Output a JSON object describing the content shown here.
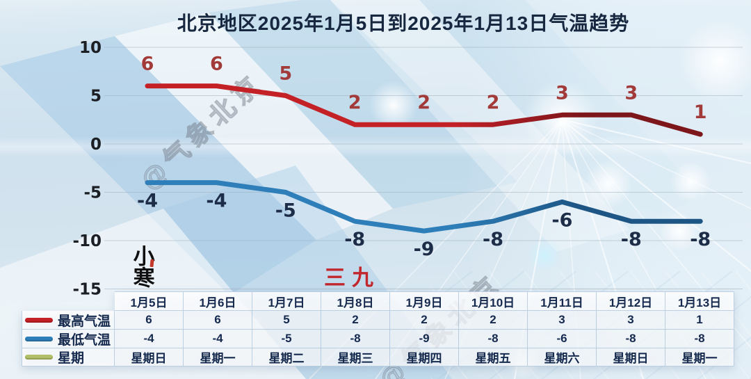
{
  "chart_data": {
    "type": "line",
    "title": "北京地区2025年1月5日到2025年1月13日气温趋势",
    "categories": [
      "1月5日",
      "1月6日",
      "1月7日",
      "1月8日",
      "1月9日",
      "1月10日",
      "1月11日",
      "1月12日",
      "1月13日"
    ],
    "series": [
      {
        "name": "最高气温",
        "values": [
          6,
          6,
          5,
          2,
          2,
          2,
          3,
          3,
          1
        ],
        "color": "#c42127",
        "color_dark": "#7d161b",
        "label_color": "#a23a3a",
        "label_side": "above"
      },
      {
        "name": "最低气温",
        "values": [
          -4,
          -4,
          -5,
          -8,
          -9,
          -8,
          -6,
          -8,
          -8
        ],
        "color": "#2e7fb9",
        "color_dark": "#1d5585",
        "label_color": "#1d2c47",
        "label_side": "below"
      }
    ],
    "y_ticks": [
      10,
      5,
      0,
      -5,
      -10,
      -15
    ],
    "ylim": [
      -15,
      10
    ],
    "grid": true,
    "legend_position": "table-left"
  },
  "table": {
    "weekday_row": {
      "label": "星期",
      "marker_color": "#b3bf66",
      "values": [
        "星期日",
        "星期一",
        "星期二",
        "星期三",
        "星期四",
        "星期五",
        "星期六",
        "星期日",
        "星期一"
      ]
    }
  },
  "annotations": {
    "solar_term": "小寒",
    "period": "三九"
  },
  "watermarks": {
    "top": "@气象北京",
    "bottom": "@气象北京"
  }
}
